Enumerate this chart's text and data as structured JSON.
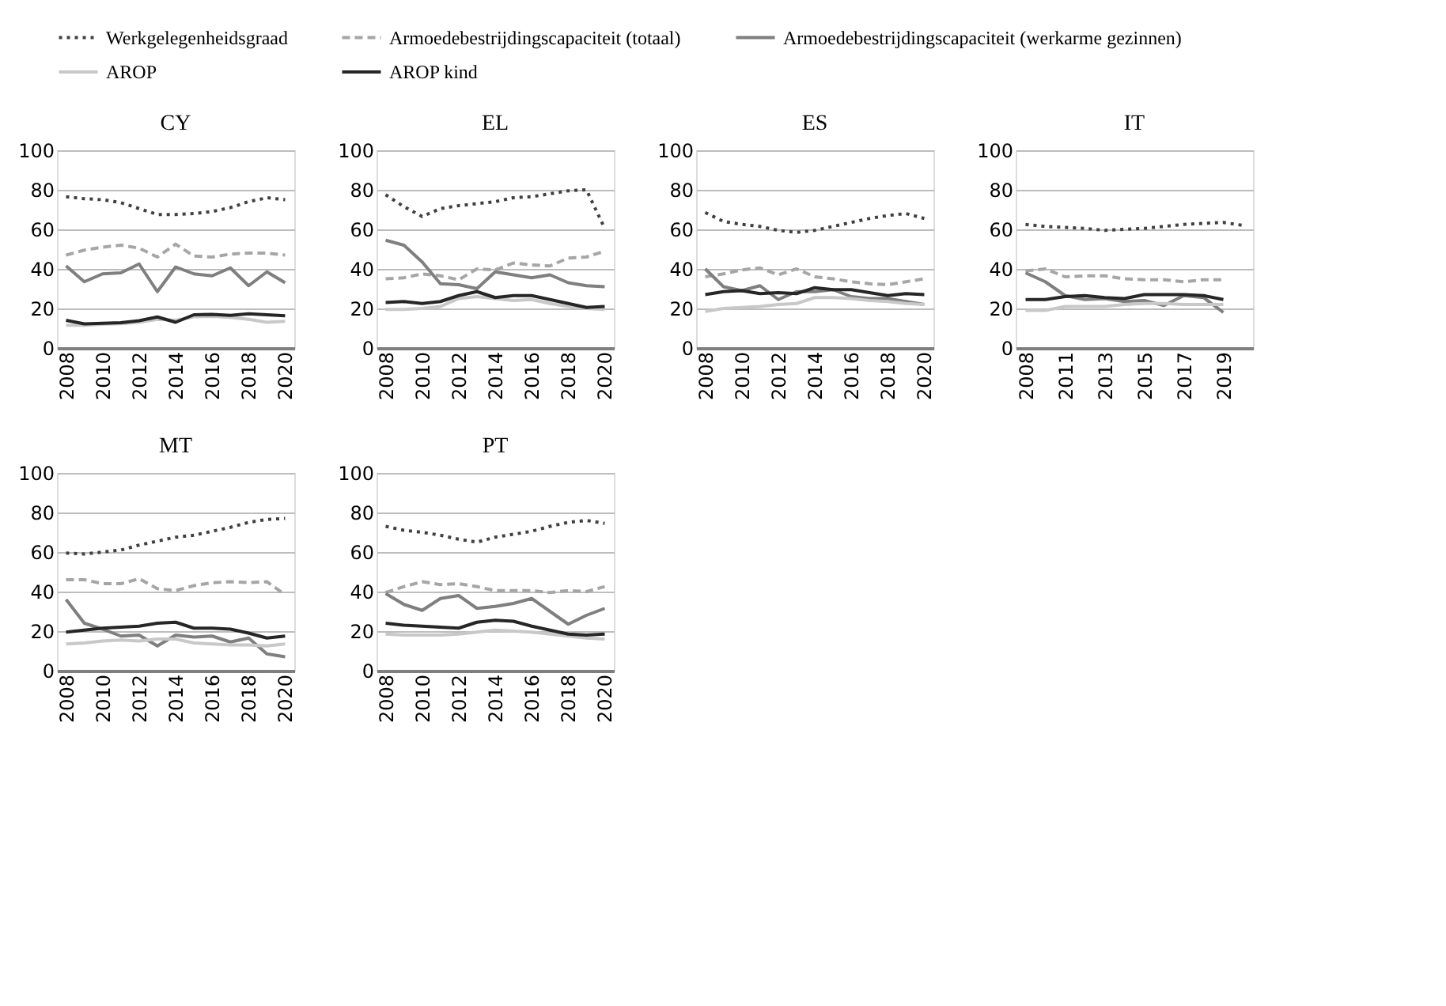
{
  "chart_data": [
    {
      "type": "line",
      "title": "CY",
      "categories": [
        "2008",
        null,
        "2010",
        null,
        "2012",
        null,
        "2014",
        null,
        "2016",
        null,
        "2018",
        null,
        "2020"
      ],
      "ylim": [
        0,
        100
      ],
      "yticks": [
        0,
        20,
        40,
        60,
        80,
        100
      ],
      "grid": "y",
      "legend": "top",
      "series": [
        {
          "name": "Werkgelegenheidsgraad",
          "color": "#404040",
          "line_style": "dotted",
          "values": [
            76.5,
            75.5,
            75,
            73.5,
            70.5,
            67.5,
            67.5,
            68,
            69,
            71,
            74,
            76,
            75
          ]
        },
        {
          "name": "Armoedebestrijdingscapaciteit (totaal)",
          "color": "#a6a6a6",
          "line_style": "dashed",
          "values": [
            47,
            49.5,
            51,
            52,
            50.5,
            46,
            52.5,
            46.5,
            46,
            47.5,
            48,
            48,
            47
          ]
        },
        {
          "name": "Armoedebestrijdingscapaciteit (werkarme gezinnen)",
          "color": "#7f7f7f",
          "line_style": "solid",
          "values": [
            41.5,
            33.5,
            37.5,
            38,
            42.5,
            28.5,
            41,
            37.5,
            36.5,
            40.5,
            31.5,
            38.5,
            33
          ]
        },
        {
          "name": "AROP",
          "color": "#c8c8c8",
          "line_style": "solid",
          "values": [
            11.5,
            11.5,
            12,
            12.3,
            13,
            14.5,
            14,
            15.8,
            16,
            15.5,
            14.5,
            13,
            13.5
          ]
        },
        {
          "name": "AROP kind",
          "color": "#262626",
          "line_style": "solid",
          "values": [
            14,
            12.2,
            12.5,
            12.8,
            13.8,
            15.7,
            13,
            16.8,
            17,
            16.5,
            17.3,
            16.8,
            16.3
          ]
        }
      ]
    },
    {
      "type": "line",
      "title": "EL",
      "categories": [
        "2008",
        null,
        "2010",
        null,
        "2012",
        null,
        "2014",
        null,
        "2016",
        null,
        "2018",
        null,
        "2020"
      ],
      "ylim": [
        0,
        100
      ],
      "yticks": [
        0,
        20,
        40,
        60,
        80,
        100
      ],
      "grid": "y",
      "series": [
        {
          "name": "Werkgelegenheidsgraad",
          "color": "#404040",
          "line_style": "dotted",
          "values": [
            77.5,
            71.5,
            66.5,
            70.5,
            72,
            73,
            74,
            76,
            76.5,
            78,
            79.5,
            80,
            60.5
          ]
        },
        {
          "name": "Armoedebestrijdingscapaciteit (totaal)",
          "color": "#a6a6a6",
          "line_style": "dashed",
          "values": [
            35,
            35.5,
            37.5,
            36.5,
            34.5,
            40,
            39.5,
            43,
            42,
            41.5,
            45.5,
            46,
            49
          ]
        },
        {
          "name": "Armoedebestrijdingscapaciteit (werkarme gezinnen)",
          "color": "#7f7f7f",
          "line_style": "solid",
          "values": [
            54.5,
            52,
            43.5,
            32.5,
            32,
            30,
            38.5,
            37,
            35.5,
            37,
            33,
            31.5,
            31
          ]
        },
        {
          "name": "AROP",
          "color": "#c8c8c8",
          "line_style": "solid",
          "values": [
            19.5,
            19.5,
            20,
            21,
            25,
            26,
            25,
            24,
            24.5,
            22.5,
            21,
            20,
            19.5
          ]
        },
        {
          "name": "AROP kind",
          "color": "#262626",
          "line_style": "solid",
          "values": [
            23,
            23.5,
            22.5,
            23.5,
            26.5,
            28.5,
            25.5,
            26.5,
            26.5,
            24.5,
            22.5,
            20.5,
            21
          ]
        }
      ]
    },
    {
      "type": "line",
      "title": "ES",
      "categories": [
        "2008",
        null,
        "2010",
        null,
        "2012",
        null,
        "2014",
        null,
        "2016",
        null,
        "2018",
        null,
        "2020"
      ],
      "ylim": [
        0,
        100
      ],
      "yticks": [
        0,
        20,
        40,
        60,
        80,
        100
      ],
      "grid": "y",
      "series": [
        {
          "name": "Werkgelegenheidsgraad",
          "color": "#404040",
          "line_style": "dotted",
          "values": [
            68.5,
            64,
            62.5,
            61.5,
            59.5,
            58.5,
            59.5,
            61.5,
            63.5,
            65.5,
            67,
            68,
            65.5
          ]
        },
        {
          "name": "Armoedebestrijdingscapaciteit (totaal)",
          "color": "#a6a6a6",
          "line_style": "dashed",
          "values": [
            36,
            37.5,
            39.5,
            40.5,
            37,
            40,
            36,
            35,
            33.5,
            32.5,
            32,
            33.5,
            35
          ]
        },
        {
          "name": "Armoedebestrijdingscapaciteit (werkarme gezinnen)",
          "color": "#7f7f7f",
          "line_style": "solid",
          "values": [
            40,
            31,
            29,
            31.5,
            24.5,
            28.5,
            28.5,
            29.5,
            26,
            25,
            25,
            23.5,
            22
          ]
        },
        {
          "name": "AROP",
          "color": "#c8c8c8",
          "line_style": "solid",
          "values": [
            18.5,
            20,
            20.5,
            21,
            22,
            22.5,
            25.5,
            25.5,
            25,
            24,
            23.5,
            22.5,
            22
          ]
        },
        {
          "name": "AROP kind",
          "color": "#262626",
          "line_style": "solid",
          "values": [
            27,
            28.5,
            29,
            27.5,
            28,
            27.5,
            30.5,
            29.5,
            29.5,
            28,
            26.5,
            27.5,
            27
          ]
        }
      ]
    },
    {
      "type": "line",
      "title": "IT",
      "categories": [
        "2008",
        null,
        "2011",
        null,
        "2013",
        null,
        "2015",
        null,
        "2017",
        null,
        "2019",
        null
      ],
      "ylim": [
        0,
        100
      ],
      "yticks": [
        0,
        20,
        40,
        60,
        80,
        100
      ],
      "grid": "y",
      "series": [
        {
          "name": "Werkgelegenheidsgraad",
          "color": "#404040",
          "line_style": "dotted",
          "values": [
            62.5,
            61.5,
            61,
            60.5,
            59.5,
            60,
            60.5,
            61.5,
            62.5,
            63,
            63.5,
            62
          ]
        },
        {
          "name": "Armoedebestrijdingscapaciteit (totaal)",
          "color": "#a6a6a6",
          "line_style": "dashed",
          "values": [
            39,
            40,
            36,
            36.5,
            36.5,
            35,
            34.5,
            34.5,
            33.5,
            34.5,
            34.5,
            null
          ]
        },
        {
          "name": "Armoedebestrijdingscapaciteit (werkarme gezinnen)",
          "color": "#7f7f7f",
          "line_style": "solid",
          "values": [
            38,
            33.5,
            26.5,
            24.5,
            25,
            23.5,
            24,
            21.5,
            26.5,
            25.5,
            18,
            null
          ]
        },
        {
          "name": "AROP",
          "color": "#c8c8c8",
          "line_style": "solid",
          "values": [
            19,
            19,
            21,
            21,
            21,
            22,
            22.5,
            22.5,
            22,
            22,
            22,
            null
          ]
        },
        {
          "name": "AROP kind",
          "color": "#262626",
          "line_style": "solid",
          "values": [
            24.5,
            24.5,
            26,
            26.5,
            25.5,
            25,
            27,
            27,
            27,
            26.5,
            24.5,
            null
          ]
        }
      ]
    },
    {
      "type": "line",
      "title": "MT",
      "categories": [
        "2008",
        null,
        "2010",
        null,
        "2012",
        null,
        "2014",
        null,
        "2016",
        null,
        "2018",
        null,
        "2020"
      ],
      "ylim": [
        0,
        100
      ],
      "yticks": [
        0,
        20,
        40,
        60,
        80,
        100
      ],
      "grid": "y",
      "series": [
        {
          "name": "Werkgelegenheidsgraad",
          "color": "#404040",
          "line_style": "dotted",
          "values": [
            59.5,
            59,
            60,
            61,
            63.5,
            65.5,
            67.5,
            68.5,
            70.5,
            72.5,
            75,
            76.5,
            77
          ]
        },
        {
          "name": "Armoedebestrijdingscapaciteit (totaal)",
          "color": "#a6a6a6",
          "line_style": "dashed",
          "values": [
            46,
            46,
            44,
            44,
            46.5,
            41.5,
            40.5,
            43,
            44.5,
            45,
            44.5,
            45,
            38.5
          ]
        },
        {
          "name": "Armoedebestrijdingscapaciteit (werkarme gezinnen)",
          "color": "#7f7f7f",
          "line_style": "solid",
          "values": [
            36,
            24,
            21,
            17.5,
            18,
            12.5,
            18,
            17,
            17.5,
            14.5,
            16.5,
            8.5,
            7
          ]
        },
        {
          "name": "AROP",
          "color": "#c8c8c8",
          "line_style": "solid",
          "values": [
            13.5,
            14,
            15,
            15.5,
            15,
            16,
            16,
            14,
            13.5,
            13,
            13,
            12.5,
            13.5
          ]
        },
        {
          "name": "AROP kind",
          "color": "#262626",
          "line_style": "solid",
          "values": [
            19.5,
            20.5,
            21.5,
            22,
            22.5,
            24,
            24.5,
            21.5,
            21.5,
            21,
            19,
            16.5,
            17.5
          ]
        }
      ]
    },
    {
      "type": "line",
      "title": "PT",
      "categories": [
        "2008",
        null,
        "2010",
        null,
        "2012",
        null,
        "2014",
        null,
        "2016",
        null,
        "2018",
        null,
        "2020"
      ],
      "ylim": [
        0,
        100
      ],
      "yticks": [
        0,
        20,
        40,
        60,
        80,
        100
      ],
      "grid": "y",
      "series": [
        {
          "name": "Werkgelegenheidsgraad",
          "color": "#404040",
          "line_style": "dotted",
          "values": [
            73,
            71,
            70,
            68.5,
            66.5,
            65,
            67.5,
            69,
            70.5,
            73,
            75,
            76,
            74.5
          ]
        },
        {
          "name": "Armoedebestrijdingscapaciteit (totaal)",
          "color": "#a6a6a6",
          "line_style": "dashed",
          "values": [
            39.5,
            42.5,
            45,
            43.5,
            44,
            42.5,
            40.5,
            40.5,
            40.5,
            39.5,
            40.5,
            40,
            42.5
          ]
        },
        {
          "name": "Armoedebestrijdingscapaciteit (werkarme gezinnen)",
          "color": "#7f7f7f",
          "line_style": "solid",
          "values": [
            39,
            33.5,
            30.5,
            36.5,
            38,
            31.5,
            32.5,
            34,
            36.5,
            30,
            23.5,
            28,
            31.5
          ]
        },
        {
          "name": "AROP",
          "color": "#c8c8c8",
          "line_style": "solid",
          "values": [
            18.5,
            18,
            18,
            18,
            18.5,
            19.5,
            20.5,
            20,
            19.5,
            18.5,
            17.5,
            16.5,
            16
          ]
        },
        {
          "name": "AROP kind",
          "color": "#262626",
          "line_style": "solid",
          "values": [
            24,
            23,
            22.5,
            22,
            21.5,
            24.5,
            25.5,
            25,
            22.5,
            20.5,
            18.5,
            18,
            18.5
          ]
        }
      ]
    }
  ]
}
